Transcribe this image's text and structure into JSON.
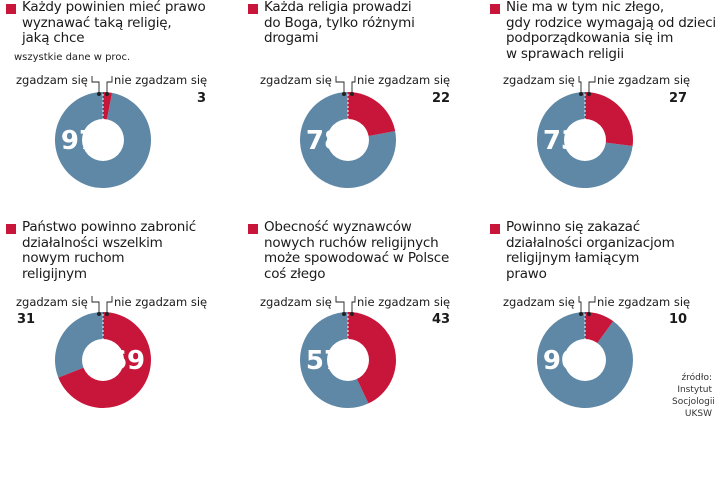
{
  "colors": {
    "agree": "#5f88a6",
    "disagree": "#c8163a",
    "hole": "#ffffff",
    "marker": "#c8163a"
  },
  "legend": {
    "agree": "zgadzam się",
    "disagree": "nie zgadzam się"
  },
  "units_note": "wszystkie dane w proc.",
  "source": [
    "źródło:",
    "Instytut",
    "Socjologii",
    "UKSW"
  ],
  "chart_data": [
    {
      "type": "pie",
      "title": "Każdy powinien mieć prawo wyznawać taką religię, jaką chce",
      "title_lines": [
        "Każdy powinien mieć prawo",
        "wyznawać taką religię,",
        "jaką chce"
      ],
      "series": [
        {
          "name": "zgadzam się",
          "value": 97
        },
        {
          "name": "nie zgadzam się",
          "value": 3
        }
      ]
    },
    {
      "type": "pie",
      "title": "Każda religia prowadzi do Boga, tylko różnymi drogami",
      "title_lines": [
        "Każda religia prowadzi",
        "do Boga, tylko różnymi",
        "drogami"
      ],
      "series": [
        {
          "name": "zgadzam się",
          "value": 78
        },
        {
          "name": "nie zgadzam się",
          "value": 22
        }
      ]
    },
    {
      "type": "pie",
      "title": "Nie ma w tym nic złego, gdy rodzice wymagają od dzieci podporządkowania się im w sprawach religii",
      "title_lines": [
        "Nie ma w tym nic złego,",
        "gdy rodzice wymagają od dzieci",
        "podporządkowania się im",
        "w sprawach religii"
      ],
      "series": [
        {
          "name": "zgadzam się",
          "value": 73
        },
        {
          "name": "nie zgadzam się",
          "value": 27
        }
      ]
    },
    {
      "type": "pie",
      "title": "Państwo powinno zabronić działalności wszelkim nowym ruchom religijnym",
      "title_lines": [
        "Państwo powinno zabronić",
        "działalności wszelkim",
        "nowym ruchom",
        "religijnym"
      ],
      "series": [
        {
          "name": "zgadzam się",
          "value": 31
        },
        {
          "name": "nie zgadzam się",
          "value": 69
        }
      ]
    },
    {
      "type": "pie",
      "title": "Obecność wyznawców nowych ruchów religijnych może spowodować w Polsce coś złego",
      "title_lines": [
        "Obecność wyznawców",
        "nowych ruchów religijnych",
        "może spowodować w Polsce",
        "coś złego"
      ],
      "series": [
        {
          "name": "zgadzam się",
          "value": 57
        },
        {
          "name": "nie zgadzam się",
          "value": 43
        }
      ]
    },
    {
      "type": "pie",
      "title": "Powinno się zakazać działalności organizacjom religijnym łamiącym prawo",
      "title_lines": [
        "Powinno się zakazać",
        "działalności organizacjom",
        "religijnym łamiącym",
        "prawo"
      ],
      "series": [
        {
          "name": "zgadzam się",
          "value": 90
        },
        {
          "name": "nie zgadzam się",
          "value": 10
        }
      ]
    }
  ]
}
